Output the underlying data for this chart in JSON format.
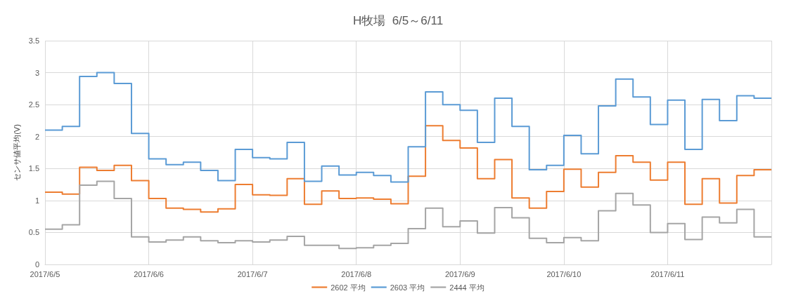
{
  "chart_data": {
    "type": "step",
    "title": "H牧場  6/5～6/11",
    "ylabel": "センサ値平均(V)",
    "x": [
      "2017-06-05T00:00",
      "2017-06-05T04:00",
      "2017-06-05T08:00",
      "2017-06-05T12:00",
      "2017-06-05T16:00",
      "2017-06-05T20:00",
      "2017-06-06T00:00",
      "2017-06-06T04:00",
      "2017-06-06T08:00",
      "2017-06-06T12:00",
      "2017-06-06T16:00",
      "2017-06-06T20:00",
      "2017-06-07T00:00",
      "2017-06-07T04:00",
      "2017-06-07T08:00",
      "2017-06-07T12:00",
      "2017-06-07T16:00",
      "2017-06-07T20:00",
      "2017-06-08T00:00",
      "2017-06-08T04:00",
      "2017-06-08T08:00",
      "2017-06-08T12:00",
      "2017-06-08T16:00",
      "2017-06-08T20:00",
      "2017-06-09T00:00",
      "2017-06-09T04:00",
      "2017-06-09T08:00",
      "2017-06-09T12:00",
      "2017-06-09T16:00",
      "2017-06-09T20:00",
      "2017-06-10T00:00",
      "2017-06-10T04:00",
      "2017-06-10T08:00",
      "2017-06-10T12:00",
      "2017-06-10T16:00",
      "2017-06-10T20:00",
      "2017-06-11T00:00",
      "2017-06-11T04:00",
      "2017-06-11T08:00",
      "2017-06-11T12:00",
      "2017-06-11T16:00",
      "2017-06-11T20:00",
      "2017-06-12T00:00"
    ],
    "series": [
      {
        "name": "2602 平均",
        "color": "#ed7d31",
        "values": [
          1.13,
          1.1,
          1.52,
          1.47,
          1.55,
          1.31,
          1.03,
          0.88,
          0.86,
          0.82,
          0.87,
          1.25,
          1.09,
          1.08,
          1.34,
          0.94,
          1.15,
          1.03,
          1.04,
          1.02,
          0.95,
          1.38,
          2.17,
          1.94,
          1.82,
          1.34,
          1.64,
          1.04,
          0.88,
          1.14,
          1.49,
          1.21,
          1.44,
          1.7,
          1.6,
          1.32,
          1.6,
          0.94,
          1.34,
          0.96,
          1.39,
          1.48,
          1.48
        ]
      },
      {
        "name": "2603 平均",
        "color": "#5b9bd5",
        "values": [
          2.1,
          2.16,
          2.94,
          3.0,
          2.83,
          2.05,
          1.65,
          1.56,
          1.6,
          1.47,
          1.31,
          1.8,
          1.67,
          1.65,
          1.91,
          1.3,
          1.54,
          1.4,
          1.44,
          1.39,
          1.29,
          1.84,
          2.7,
          2.5,
          2.41,
          1.91,
          2.6,
          2.16,
          1.48,
          1.55,
          2.02,
          1.73,
          2.48,
          2.9,
          2.62,
          2.19,
          2.57,
          1.8,
          2.58,
          2.25,
          2.64,
          2.6,
          2.6
        ]
      },
      {
        "name": "2444 平均",
        "color": "#a5a5a5",
        "values": [
          0.55,
          0.62,
          1.24,
          1.3,
          1.03,
          0.43,
          0.35,
          0.38,
          0.43,
          0.37,
          0.34,
          0.37,
          0.35,
          0.38,
          0.44,
          0.3,
          0.3,
          0.25,
          0.26,
          0.3,
          0.33,
          0.56,
          0.88,
          0.59,
          0.68,
          0.49,
          0.89,
          0.73,
          0.41,
          0.34,
          0.42,
          0.37,
          0.84,
          1.11,
          0.93,
          0.5,
          0.64,
          0.39,
          0.74,
          0.65,
          0.86,
          0.43,
          0.43
        ]
      }
    ],
    "xlim": [
      "2017-06-05",
      "2017-06-12"
    ],
    "xticks": [
      {
        "value": "2017-06-05",
        "label": "2017/6/5"
      },
      {
        "value": "2017-06-06",
        "label": "2017/6/6"
      },
      {
        "value": "2017-06-07",
        "label": "2017/6/7"
      },
      {
        "value": "2017-06-08",
        "label": "2017/6/8"
      },
      {
        "value": "2017-06-09",
        "label": "2017/6/9"
      },
      {
        "value": "2017-06-10",
        "label": "2017/6/10"
      },
      {
        "value": "2017-06-11",
        "label": "2017/6/11"
      },
      {
        "value": "2017-06-12",
        "label": null
      }
    ],
    "ylim": [
      0,
      3.5
    ],
    "yticks": [
      0,
      0.5,
      1,
      1.5,
      2,
      2.5,
      3,
      3.5
    ],
    "grid": true,
    "legend": "bottom",
    "marker": "none",
    "line_style": "solid"
  }
}
